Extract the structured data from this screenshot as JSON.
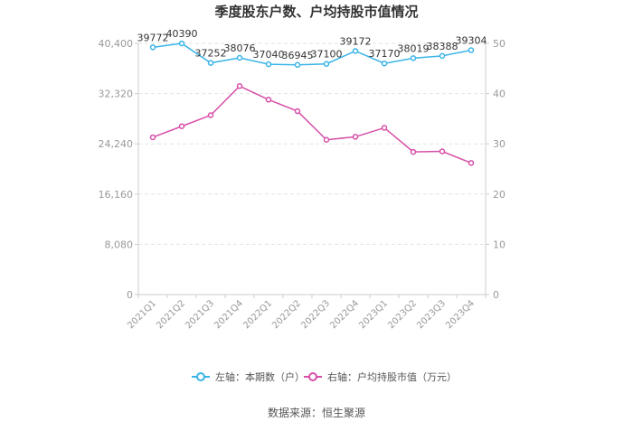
{
  "chart_data": {
    "type": "line",
    "title": "季度股东户数、户均持股市值情况",
    "categories": [
      "2021Q1",
      "2021Q2",
      "2021Q3",
      "2021Q4",
      "2022Q1",
      "2022Q2",
      "2022Q3",
      "2022Q4",
      "2023Q1",
      "2023Q2",
      "2023Q3",
      "2023Q4"
    ],
    "series": [
      {
        "name": "左轴：本期数（户）",
        "axis": "left",
        "color": "#3bb4e8",
        "values": [
          39772,
          40390,
          37252,
          38076,
          37040,
          36945,
          37100,
          39172,
          37170,
          38019,
          38388,
          39304
        ],
        "labels": [
          "39772",
          "40390",
          "37252",
          "38076",
          "37040",
          "36945",
          "37100",
          "39172",
          "37170",
          "38019",
          "38388",
          "39304"
        ]
      },
      {
        "name": "右轴：户均持股市值（万元）",
        "axis": "right",
        "color": "#d64fa8",
        "values": [
          31.3,
          33.5,
          35.7,
          41.5,
          38.8,
          36.5,
          30.8,
          31.4,
          33.2,
          28.4,
          28.5,
          26.2
        ]
      }
    ],
    "yleft": {
      "ticks": [
        "0",
        "8,080",
        "16,160",
        "24,240",
        "32,320",
        "40,400"
      ],
      "min": 0,
      "max": 40400
    },
    "yright": {
      "ticks": [
        "0",
        "10",
        "20",
        "30",
        "40",
        "50"
      ],
      "min": 0,
      "max": 50
    },
    "grid": true,
    "legend_position": "bottom"
  },
  "footer": {
    "source": "数据来源：恒生聚源"
  }
}
